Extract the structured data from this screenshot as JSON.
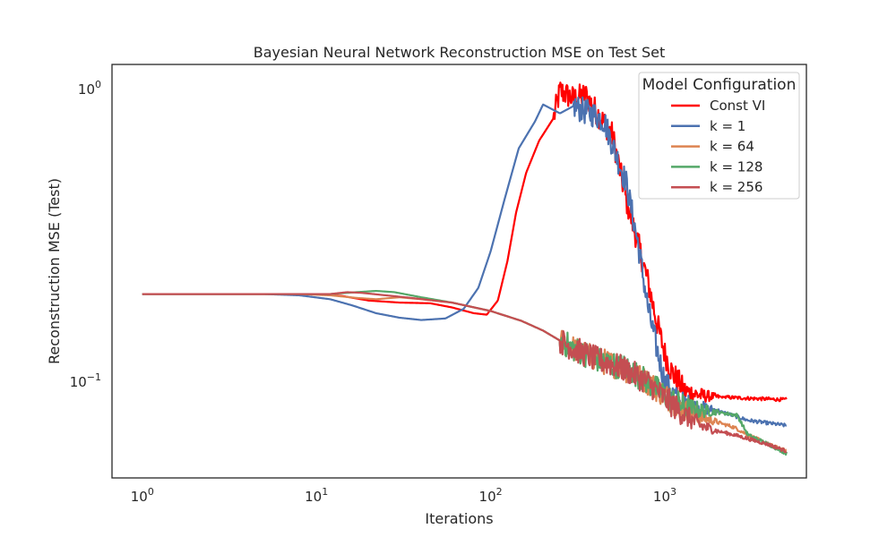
{
  "chart_data": {
    "type": "line",
    "title": "Bayesian Neural Network Reconstruction MSE on Test Set",
    "xlabel": "Iterations",
    "ylabel": "Reconstruction MSE (Test)",
    "xscale": "log",
    "yscale": "log",
    "xlim": [
      0.67,
      6500
    ],
    "ylim": [
      0.047,
      1.22
    ],
    "grid": false,
    "x_ticks": [
      {
        "value": 1,
        "base": "10",
        "exp": "0"
      },
      {
        "value": 10,
        "base": "10",
        "exp": "1"
      },
      {
        "value": 100,
        "base": "10",
        "exp": "2"
      },
      {
        "value": 1000,
        "base": "10",
        "exp": "3"
      }
    ],
    "y_ticks": [
      {
        "value": 0.1,
        "base": "10",
        "exp": "−1"
      },
      {
        "value": 1,
        "base": "10",
        "exp": "0"
      }
    ],
    "legend": {
      "title": "Model Configuration",
      "placement": "upper right",
      "entries": [
        "Const VI",
        "k = 1",
        "k = 64",
        "k = 128",
        "k = 256"
      ]
    },
    "series": [
      {
        "name": "Const VI",
        "color": "#ff0000",
        "noisy_from": 230,
        "points": [
          [
            1,
            0.2
          ],
          [
            5,
            0.2
          ],
          [
            10,
            0.2
          ],
          [
            14,
            0.197
          ],
          [
            20,
            0.19
          ],
          [
            30,
            0.187
          ],
          [
            45,
            0.186
          ],
          [
            60,
            0.18
          ],
          [
            80,
            0.172
          ],
          [
            95,
            0.17
          ],
          [
            110,
            0.19
          ],
          [
            125,
            0.26
          ],
          [
            140,
            0.38
          ],
          [
            160,
            0.52
          ],
          [
            190,
            0.67
          ],
          [
            230,
            0.8
          ],
          [
            250,
            0.99
          ],
          [
            300,
            0.93
          ],
          [
            350,
            0.96
          ],
          [
            400,
            0.85
          ],
          [
            500,
            0.7
          ],
          [
            600,
            0.42
          ],
          [
            700,
            0.3
          ],
          [
            800,
            0.22
          ],
          [
            900,
            0.16
          ],
          [
            1000,
            0.125
          ],
          [
            1100,
            0.108
          ],
          [
            1300,
            0.093
          ],
          [
            1600,
            0.09
          ],
          [
            2000,
            0.089
          ],
          [
            3000,
            0.088
          ],
          [
            5000,
            0.087
          ]
        ]
      },
      {
        "name": "k = 1",
        "color": "#4c72b0",
        "noisy_from": 300,
        "points": [
          [
            1,
            0.2
          ],
          [
            5,
            0.2
          ],
          [
            8,
            0.198
          ],
          [
            12,
            0.192
          ],
          [
            16,
            0.183
          ],
          [
            22,
            0.172
          ],
          [
            30,
            0.166
          ],
          [
            40,
            0.163
          ],
          [
            55,
            0.165
          ],
          [
            70,
            0.178
          ],
          [
            85,
            0.21
          ],
          [
            100,
            0.28
          ],
          [
            120,
            0.42
          ],
          [
            145,
            0.63
          ],
          [
            180,
            0.78
          ],
          [
            200,
            0.89
          ],
          [
            250,
            0.83
          ],
          [
            300,
            0.88
          ],
          [
            350,
            0.84
          ],
          [
            400,
            0.82
          ],
          [
            450,
            0.78
          ],
          [
            500,
            0.65
          ],
          [
            600,
            0.48
          ],
          [
            700,
            0.3
          ],
          [
            800,
            0.18
          ],
          [
            900,
            0.13
          ],
          [
            1000,
            0.1
          ],
          [
            1200,
            0.085
          ],
          [
            1500,
            0.082
          ],
          [
            2000,
            0.08
          ],
          [
            3000,
            0.074
          ],
          [
            5000,
            0.071
          ]
        ]
      },
      {
        "name": "k = 64",
        "color": "#dd8452",
        "noisy_from": 250,
        "points": [
          [
            1,
            0.2
          ],
          [
            8,
            0.2
          ],
          [
            12,
            0.198
          ],
          [
            17,
            0.194
          ],
          [
            22,
            0.192
          ],
          [
            30,
            0.195
          ],
          [
            40,
            0.192
          ],
          [
            60,
            0.187
          ],
          [
            100,
            0.175
          ],
          [
            150,
            0.162
          ],
          [
            200,
            0.15
          ],
          [
            300,
            0.13
          ],
          [
            400,
            0.12
          ],
          [
            500,
            0.115
          ],
          [
            600,
            0.11
          ],
          [
            800,
            0.1
          ],
          [
            1000,
            0.09
          ],
          [
            1300,
            0.08
          ],
          [
            1600,
            0.076
          ],
          [
            2000,
            0.073
          ],
          [
            2500,
            0.07
          ],
          [
            3000,
            0.066
          ],
          [
            4000,
            0.061
          ],
          [
            5000,
            0.058
          ]
        ]
      },
      {
        "name": "k = 128",
        "color": "#55a868",
        "noisy_from": 250,
        "points": [
          [
            1,
            0.2
          ],
          [
            8,
            0.2
          ],
          [
            12,
            0.2
          ],
          [
            17,
            0.203
          ],
          [
            22,
            0.205
          ],
          [
            28,
            0.203
          ],
          [
            40,
            0.195
          ],
          [
            60,
            0.187
          ],
          [
            100,
            0.175
          ],
          [
            150,
            0.162
          ],
          [
            200,
            0.15
          ],
          [
            300,
            0.13
          ],
          [
            400,
            0.12
          ],
          [
            500,
            0.115
          ],
          [
            600,
            0.112
          ],
          [
            800,
            0.1
          ],
          [
            1000,
            0.09
          ],
          [
            1300,
            0.082
          ],
          [
            1600,
            0.08
          ],
          [
            2000,
            0.079
          ],
          [
            2600,
            0.077
          ],
          [
            3000,
            0.066
          ],
          [
            4000,
            0.061
          ],
          [
            5000,
            0.057
          ]
        ]
      },
      {
        "name": "k = 256",
        "color": "#c44e52",
        "noisy_from": 250,
        "points": [
          [
            1,
            0.2
          ],
          [
            8,
            0.2
          ],
          [
            12,
            0.2
          ],
          [
            15,
            0.203
          ],
          [
            18,
            0.202
          ],
          [
            25,
            0.198
          ],
          [
            35,
            0.194
          ],
          [
            60,
            0.187
          ],
          [
            100,
            0.175
          ],
          [
            150,
            0.162
          ],
          [
            200,
            0.15
          ],
          [
            300,
            0.13
          ],
          [
            400,
            0.12
          ],
          [
            500,
            0.115
          ],
          [
            600,
            0.11
          ],
          [
            800,
            0.1
          ],
          [
            1000,
            0.088
          ],
          [
            1300,
            0.077
          ],
          [
            1600,
            0.071
          ],
          [
            2000,
            0.068
          ],
          [
            2500,
            0.066
          ],
          [
            3000,
            0.064
          ],
          [
            4000,
            0.061
          ],
          [
            5000,
            0.058
          ]
        ]
      }
    ]
  }
}
